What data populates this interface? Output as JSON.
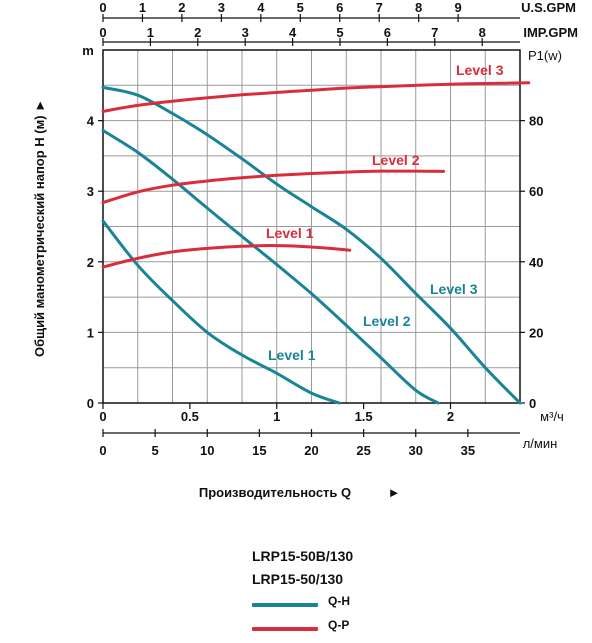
{
  "chart_data": {
    "type": "line",
    "ylabel": "Общий манометрический напор H (м)",
    "ylabel_arrow": "►",
    "xlabel": "Производительность Q",
    "xlabel_arrow": "►",
    "xlim": [
      0,
      2.4
    ],
    "ylim": [
      0,
      4.5
    ],
    "y2lim": [
      0,
      90
    ],
    "grid": true,
    "axes": {
      "left": {
        "unit": "m",
        "ticks": [
          "0",
          "1",
          "2",
          "3",
          "4"
        ]
      },
      "right": {
        "unit": "P1(w)",
        "ticks": [
          "0",
          "20",
          "40",
          "60",
          "80"
        ]
      },
      "usgpm": {
        "unit": "U.S.GPM",
        "ticks": [
          "0",
          "1",
          "2",
          "3",
          "4",
          "5",
          "6",
          "7",
          "8",
          "9"
        ]
      },
      "impgpm": {
        "unit": "IMP.GPM",
        "ticks": [
          "0",
          "1",
          "2",
          "3",
          "4",
          "5",
          "6",
          "7",
          "8"
        ]
      },
      "m3h": {
        "unit": "м³/ч",
        "ticks": [
          "0",
          "0.5",
          "1",
          "1.5",
          "2"
        ]
      },
      "lmin": {
        "unit": "л/мин",
        "ticks": [
          "0",
          "5",
          "10",
          "15",
          "20",
          "25",
          "30",
          "35"
        ]
      }
    },
    "series": [
      {
        "name": "Level 1",
        "kind": "Q-H",
        "color": "#1a8497",
        "points": [
          [
            0,
            2.58
          ],
          [
            0.2,
            1.95
          ],
          [
            0.4,
            1.45
          ],
          [
            0.6,
            1.0
          ],
          [
            0.8,
            0.68
          ],
          [
            1.0,
            0.42
          ],
          [
            1.2,
            0.14
          ],
          [
            1.36,
            0.0
          ]
        ]
      },
      {
        "name": "Level 2",
        "kind": "Q-H",
        "color": "#1a8497",
        "points": [
          [
            0,
            3.86
          ],
          [
            0.2,
            3.55
          ],
          [
            0.4,
            3.17
          ],
          [
            0.6,
            2.76
          ],
          [
            0.8,
            2.36
          ],
          [
            1.0,
            1.96
          ],
          [
            1.2,
            1.55
          ],
          [
            1.4,
            1.1
          ],
          [
            1.6,
            0.64
          ],
          [
            1.8,
            0.18
          ],
          [
            1.93,
            0.0
          ]
        ]
      },
      {
        "name": "Level 3",
        "kind": "Q-H",
        "color": "#1a8497",
        "points": [
          [
            0,
            4.47
          ],
          [
            0.2,
            4.36
          ],
          [
            0.4,
            4.1
          ],
          [
            0.6,
            3.8
          ],
          [
            0.8,
            3.46
          ],
          [
            1.0,
            3.1
          ],
          [
            1.2,
            2.78
          ],
          [
            1.4,
            2.46
          ],
          [
            1.6,
            2.05
          ],
          [
            1.8,
            1.55
          ],
          [
            2.0,
            1.06
          ],
          [
            2.2,
            0.5
          ],
          [
            2.4,
            0.0
          ]
        ]
      },
      {
        "name": "Level 1",
        "kind": "Q-P",
        "color": "#d92d3c",
        "points": [
          [
            0,
            38.5
          ],
          [
            0.2,
            41.0
          ],
          [
            0.4,
            42.8
          ],
          [
            0.6,
            43.8
          ],
          [
            0.8,
            44.4
          ],
          [
            1.0,
            44.6
          ],
          [
            1.2,
            44.2
          ],
          [
            1.42,
            43.3
          ]
        ]
      },
      {
        "name": "Level 2",
        "kind": "Q-P",
        "color": "#d92d3c",
        "points": [
          [
            0,
            56.8
          ],
          [
            0.2,
            59.8
          ],
          [
            0.4,
            61.7
          ],
          [
            0.6,
            62.9
          ],
          [
            0.8,
            63.8
          ],
          [
            1.0,
            64.5
          ],
          [
            1.2,
            65.0
          ],
          [
            1.4,
            65.4
          ],
          [
            1.6,
            65.7
          ],
          [
            1.96,
            65.6
          ]
        ]
      },
      {
        "name": "Level 3",
        "kind": "Q-P",
        "color": "#d92d3c",
        "points": [
          [
            0,
            82.6
          ],
          [
            0.2,
            84.3
          ],
          [
            0.5,
            86.0
          ],
          [
            0.8,
            87.3
          ],
          [
            1.1,
            88.3
          ],
          [
            1.4,
            89.2
          ],
          [
            1.7,
            89.8
          ],
          [
            2.0,
            90.3
          ],
          [
            2.3,
            90.6
          ],
          [
            2.45,
            90.7
          ]
        ]
      }
    ]
  },
  "legend": {
    "models": [
      "LRP15-50B/130",
      "LRP15-50/130"
    ],
    "items": [
      {
        "label": "Q-H",
        "color": "#1a8497"
      },
      {
        "label": "Q-P",
        "color": "#d92d3c"
      }
    ]
  }
}
